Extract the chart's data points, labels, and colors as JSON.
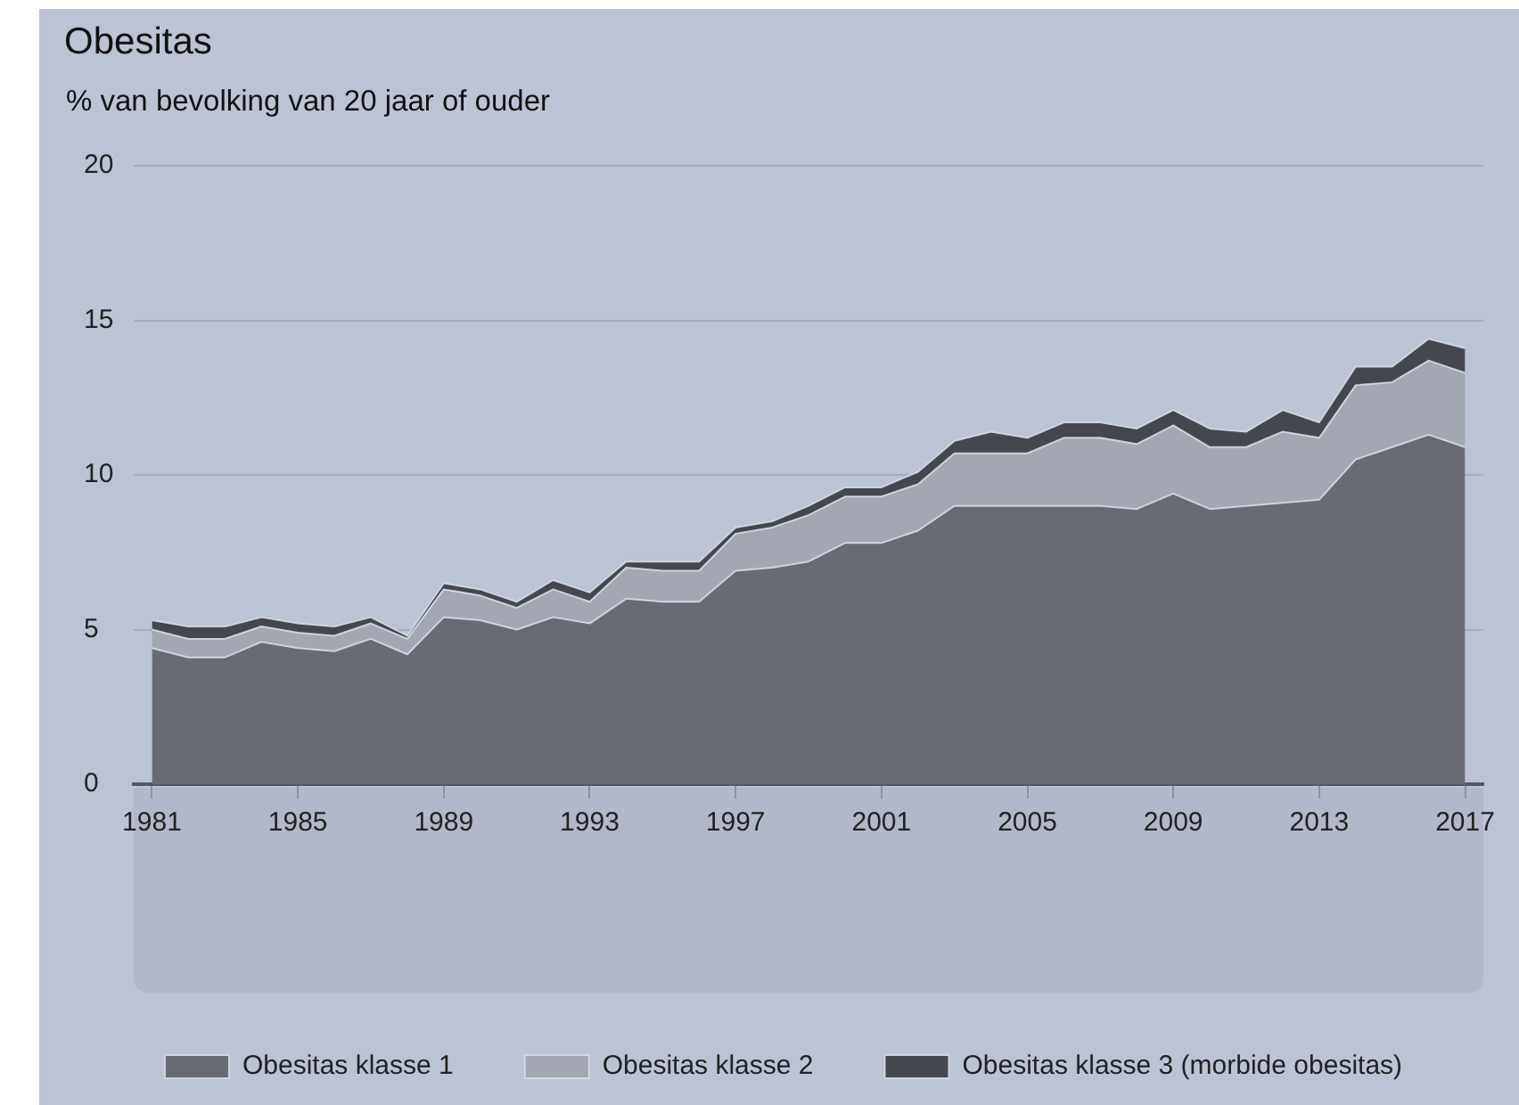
{
  "chart_data": {
    "type": "area",
    "title": "Obesitas",
    "subtitle": "% van bevolking van 20 jaar of ouder",
    "x": [
      1981,
      1982,
      1983,
      1984,
      1985,
      1986,
      1987,
      1988,
      1989,
      1990,
      1991,
      1992,
      1993,
      1994,
      1995,
      1996,
      1997,
      1998,
      1999,
      2000,
      2001,
      2002,
      2003,
      2004,
      2005,
      2006,
      2007,
      2008,
      2009,
      2010,
      2011,
      2012,
      2013,
      2014,
      2015,
      2016,
      2017
    ],
    "xlim": [
      1980.5,
      2017.5
    ],
    "xticks": [
      1981,
      1985,
      1989,
      1993,
      1997,
      2001,
      2005,
      2009,
      2013,
      2017
    ],
    "ylim": [
      0,
      20
    ],
    "yticks": [
      0,
      5,
      10,
      15,
      20
    ],
    "stacked": true,
    "grid": "y",
    "legend": "bottom",
    "series": [
      {
        "name": "Obesitas klasse 1",
        "color": "#686b74",
        "values": [
          4.4,
          4.1,
          4.1,
          4.6,
          4.4,
          4.3,
          4.7,
          4.2,
          5.4,
          5.3,
          5.0,
          5.4,
          5.2,
          6.0,
          5.9,
          5.9,
          6.9,
          7.0,
          7.2,
          7.8,
          7.8,
          8.2,
          9.0,
          9.0,
          9.0,
          9.0,
          9.0,
          8.9,
          9.4,
          8.9,
          9.0,
          9.1,
          9.2,
          10.5,
          10.9,
          11.3,
          10.9
        ]
      },
      {
        "name": "Obesitas klasse 2",
        "color": "#a3a7b2",
        "values": [
          0.6,
          0.6,
          0.6,
          0.5,
          0.5,
          0.5,
          0.5,
          0.5,
          0.9,
          0.8,
          0.7,
          0.9,
          0.7,
          1.0,
          1.0,
          1.0,
          1.2,
          1.3,
          1.5,
          1.5,
          1.5,
          1.5,
          1.7,
          1.7,
          1.7,
          2.2,
          2.2,
          2.1,
          2.2,
          2.0,
          1.9,
          2.3,
          2.0,
          2.4,
          2.1,
          2.4,
          2.4
        ]
      },
      {
        "name": "Obesitas klasse 3 (morbide obesitas)",
        "color": "#45474e",
        "values": [
          0.3,
          0.4,
          0.4,
          0.3,
          0.3,
          0.3,
          0.2,
          0.1,
          0.2,
          0.2,
          0.2,
          0.3,
          0.3,
          0.2,
          0.3,
          0.3,
          0.2,
          0.2,
          0.3,
          0.3,
          0.3,
          0.4,
          0.4,
          0.7,
          0.5,
          0.5,
          0.5,
          0.5,
          0.5,
          0.6,
          0.5,
          0.7,
          0.5,
          0.6,
          0.5,
          0.7,
          0.8
        ]
      }
    ]
  }
}
